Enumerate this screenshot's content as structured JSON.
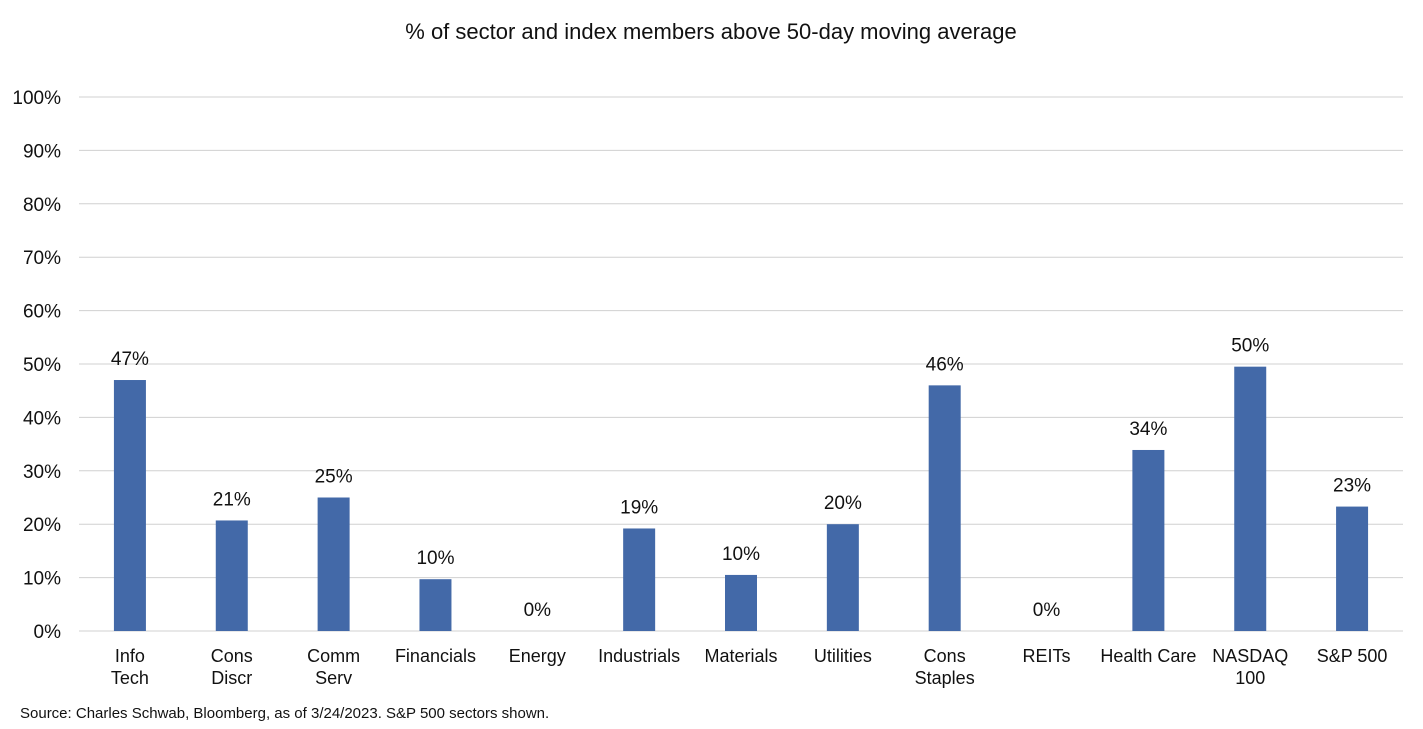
{
  "chart_data": {
    "type": "bar",
    "title": "% of sector and index members above 50-day moving average",
    "xlabel": "",
    "ylabel": "",
    "ylim": [
      0,
      100
    ],
    "yticks": [
      "0%",
      "10%",
      "20%",
      "30%",
      "40%",
      "50%",
      "60%",
      "70%",
      "80%",
      "90%",
      "100%"
    ],
    "grid": true,
    "legend": "none",
    "bar_color": "#4369a8",
    "grid_color": "#d0d0d0",
    "categories": [
      [
        "Info",
        "Tech"
      ],
      [
        "Cons",
        "Discr"
      ],
      [
        "Comm",
        "Serv"
      ],
      [
        "Financials"
      ],
      [
        "Energy"
      ],
      [
        "Industrials"
      ],
      [
        "Materials"
      ],
      [
        "Utilities"
      ],
      [
        "Cons",
        "Staples"
      ],
      [
        "REITs"
      ],
      [
        "Health Care"
      ],
      [
        "NASDAQ",
        "100"
      ],
      [
        "S&P 500"
      ]
    ],
    "values": [
      47,
      20.7,
      25,
      9.7,
      0,
      19.2,
      10.5,
      20,
      46,
      0,
      33.9,
      49.5,
      23.3
    ],
    "data_labels": [
      "47%",
      "21%",
      "25%",
      "10%",
      "0%",
      "19%",
      "10%",
      "20%",
      "46%",
      "0%",
      "34%",
      "50%",
      "23%"
    ],
    "source": "Source: Charles Schwab, Bloomberg, as of 3/24/2023.  S&P 500 sectors shown."
  }
}
